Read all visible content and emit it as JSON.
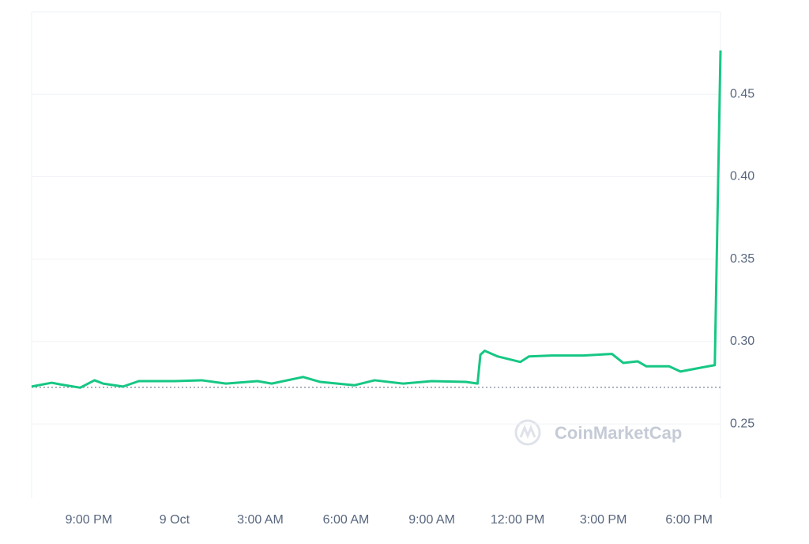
{
  "chart_data": {
    "type": "line",
    "watermark": "CoinMarketCap",
    "x": [
      -5,
      -4.3,
      -4,
      -3.3,
      -2.8,
      -2.5,
      -1.8,
      -1.25,
      0,
      0.95,
      1.8,
      2.9,
      3.4,
      4.5,
      5.1,
      6.3,
      7,
      8,
      9,
      10.2,
      10.6,
      10.7,
      10.85,
      11.3,
      12.1,
      12.4,
      13.2,
      14.3,
      15.3,
      15.7,
      16.2,
      16.5,
      17.3,
      17.7,
      18.3,
      18.9,
      19.1
    ],
    "series": [
      {
        "color": "#16c784",
        "values": [
          0.2727,
          0.275,
          0.274,
          0.272,
          0.2765,
          0.2745,
          0.2727,
          0.276,
          0.276,
          0.2765,
          0.2745,
          0.276,
          0.2745,
          0.2785,
          0.2755,
          0.2735,
          0.2765,
          0.2745,
          0.276,
          0.2755,
          0.2745,
          0.292,
          0.2944,
          0.291,
          0.2876,
          0.291,
          0.2915,
          0.2915,
          0.2925,
          0.287,
          0.288,
          0.285,
          0.285,
          0.2818,
          0.2838,
          0.2857,
          0.4766
        ]
      }
    ],
    "baseline": 0.2722,
    "xlim": [
      -5,
      19.1
    ],
    "xticks": [
      {
        "value": -3,
        "label": "9:00 PM"
      },
      {
        "value": 0,
        "label": "9 Oct"
      },
      {
        "value": 3,
        "label": "3:00 AM"
      },
      {
        "value": 6,
        "label": "6:00 AM"
      },
      {
        "value": 9,
        "label": "9:00 AM"
      },
      {
        "value": 12,
        "label": "12:00 PM"
      },
      {
        "value": 15,
        "label": "3:00 PM"
      },
      {
        "value": 18,
        "label": "6:00 PM"
      }
    ],
    "ylim": [
      0.205,
      0.5
    ],
    "yticks": [
      0.25,
      {
        "value": 0.3,
        "label": "0.30"
      },
      0.35,
      {
        "value": 0.4,
        "label": "0.40"
      },
      0.45
    ],
    "grid": true
  }
}
